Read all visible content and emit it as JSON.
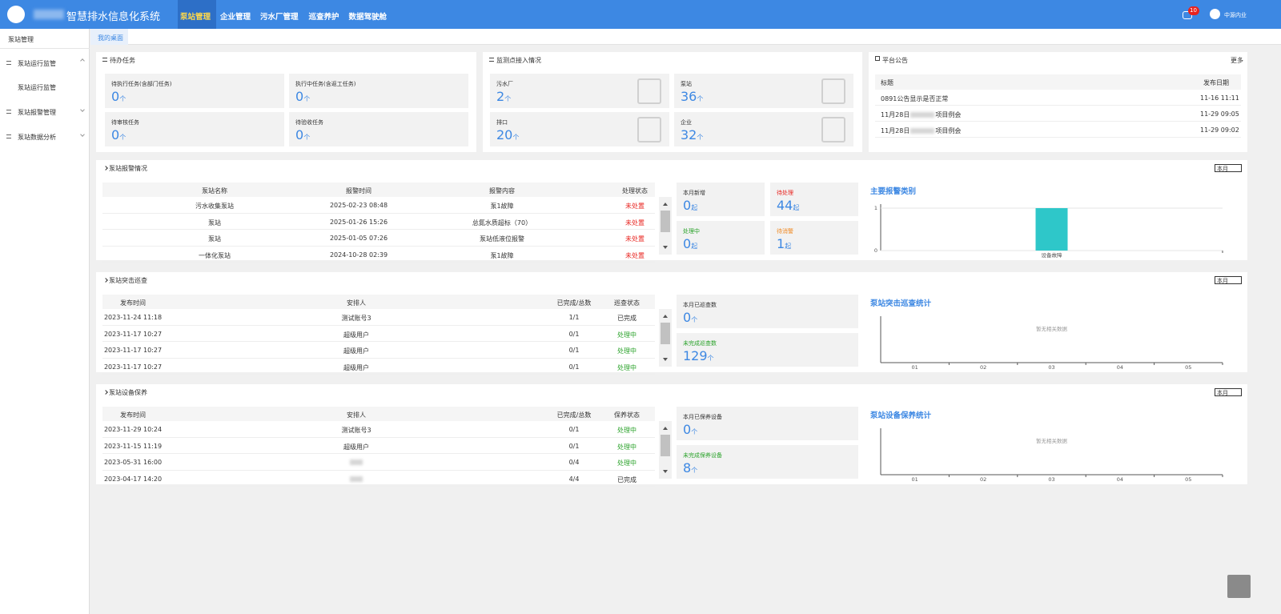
{
  "header": {
    "brand": "智慧排水信息化系统",
    "nav": [
      "泵站管理",
      "企业管理",
      "污水厂管理",
      "巡查养护",
      "数据驾驶舱"
    ],
    "badge": "10",
    "user": "中源内业"
  },
  "sidebar": {
    "title": "泵站管理",
    "items": [
      {
        "label": "泵站运行监管",
        "children": [
          "泵站运行监管"
        ]
      },
      {
        "label": "泵站报警管理"
      },
      {
        "label": "泵站数据分析"
      }
    ]
  },
  "tabs": [
    "我的桌面"
  ],
  "tasks": {
    "title": "待办任务",
    "cards": [
      {
        "label": "待执行任务(含部门任务)",
        "value": 0,
        "unit": "个"
      },
      {
        "label": "执行中任务(含返工任务)",
        "value": 0,
        "unit": "个"
      },
      {
        "label": "待审核任务",
        "value": 0,
        "unit": "个"
      },
      {
        "label": "待验收任务",
        "value": 0,
        "unit": "个"
      }
    ]
  },
  "monitor": {
    "title": "监测点接入情况",
    "cards": [
      {
        "label": "污水厂",
        "value": 2,
        "unit": "个"
      },
      {
        "label": "泵站",
        "value": 36,
        "unit": "个"
      },
      {
        "label": "排口",
        "value": 20,
        "unit": "个"
      },
      {
        "label": "企业",
        "value": 32,
        "unit": "个"
      }
    ]
  },
  "notices": {
    "title": "平台公告",
    "more": "更多",
    "columns": [
      "标题",
      "发布日期"
    ],
    "rows": [
      {
        "title": [
          "0891公告显示是否正常"
        ],
        "date": "11-16 11:11"
      },
      {
        "title": [
          "11月28日",
          "项目例会"
        ],
        "date": "11-29 09:05"
      },
      {
        "title": [
          "11月28日",
          "项目例会"
        ],
        "date": "11-29 09:02"
      }
    ]
  },
  "sections": [
    {
      "title": "泵站报警情况",
      "filter": "本月",
      "columns": [
        "泵站名称",
        "报警时间",
        "报警内容",
        "处理状态"
      ],
      "rows": [
        [
          "污水收集泵站",
          "2025-02-23 08:48",
          "泵1故障",
          {
            "text": "未处置",
            "color": "#e8231e"
          }
        ],
        [
          "泵站",
          "2025-01-26 15:26",
          "总氮水质超标（70）",
          {
            "text": "未处置",
            "color": "#e8231e"
          }
        ],
        [
          "泵站",
          "2025-01-05 07:26",
          "泵站低液位报警",
          {
            "text": "未处置",
            "color": "#e8231e"
          }
        ],
        [
          "一体化泵站",
          "2024-10-28 02:39",
          "泵1故障",
          {
            "text": "未处置",
            "color": "#e8231e"
          }
        ]
      ],
      "stats": [
        {
          "label": "本月新增",
          "value": 0,
          "unit": "起",
          "color": "#333333"
        },
        {
          "label": "待处理",
          "value": 44,
          "unit": "起",
          "color": "#e8231e"
        },
        {
          "label": "处理中",
          "value": 0,
          "unit": "起",
          "color": "#2aa22a"
        },
        {
          "label": "待消警",
          "value": 1,
          "unit": "起",
          "color": "#f08a24"
        }
      ],
      "chart": {
        "type": "bar",
        "title": "主要报警类别",
        "categories": [
          "设备故障"
        ],
        "values": [
          1
        ],
        "ylim": [
          0,
          1
        ],
        "yticks": [
          0,
          1
        ],
        "color": "#2ec7c9"
      }
    },
    {
      "title": "泵站突击巡查",
      "filter": "本月",
      "columns": [
        "发布时间",
        "安排人",
        "已完成/总数",
        "巡查状态"
      ],
      "rows": [
        [
          "2023-11-24 11:18",
          "测试账号3",
          "1/1",
          {
            "text": "已完成",
            "color": "#333333"
          }
        ],
        [
          "2023-11-17 10:27",
          "超级用户",
          "0/1",
          {
            "text": "处理中",
            "color": "#2aa22a"
          }
        ],
        [
          "2023-11-17 10:27",
          "超级用户",
          "0/1",
          {
            "text": "处理中",
            "color": "#2aa22a"
          }
        ],
        [
          "2023-11-17 10:27",
          "超级用户",
          "0/1",
          {
            "text": "处理中",
            "color": "#2aa22a"
          }
        ]
      ],
      "stats": [
        {
          "label": "本月已巡查数",
          "value": 0,
          "unit": "个",
          "color": "#333333"
        },
        {
          "label": "未完成巡查数",
          "value": 129,
          "unit": "个",
          "color": "#2aa22a"
        }
      ],
      "chart": {
        "type": "bar",
        "title": "泵站突击巡查统计",
        "categories": [
          "01",
          "02",
          "03",
          "04",
          "05"
        ],
        "empty_text": "暂无相关数据"
      }
    },
    {
      "title": "泵站设备保养",
      "filter": "本月",
      "columns": [
        "发布时间",
        "安排人",
        "已完成/总数",
        "保养状态"
      ],
      "rows": [
        [
          "2023-11-29 10:24",
          "测试账号3",
          "0/1",
          {
            "text": "处理中",
            "color": "#2aa22a"
          }
        ],
        [
          "2023-11-15 11:19",
          "超级用户",
          "0/1",
          {
            "text": "处理中",
            "color": "#2aa22a"
          }
        ],
        [
          "2023-05-31 16:00",
          "",
          "0/4",
          {
            "text": "处理中",
            "color": "#2aa22a"
          }
        ],
        [
          "2023-04-17 14:20",
          "",
          "4/4",
          {
            "text": "已完成",
            "color": "#333333"
          }
        ]
      ],
      "stats": [
        {
          "label": "本月已保养设备",
          "value": 0,
          "unit": "个",
          "color": "#333333"
        },
        {
          "label": "未完成保养设备",
          "value": 8,
          "unit": "个",
          "color": "#2aa22a"
        }
      ],
      "chart": {
        "type": "bar",
        "title": "泵站设备保养统计",
        "categories": [
          "01",
          "02",
          "03",
          "04",
          "05"
        ],
        "empty_text": "暂无相关数据"
      }
    }
  ]
}
